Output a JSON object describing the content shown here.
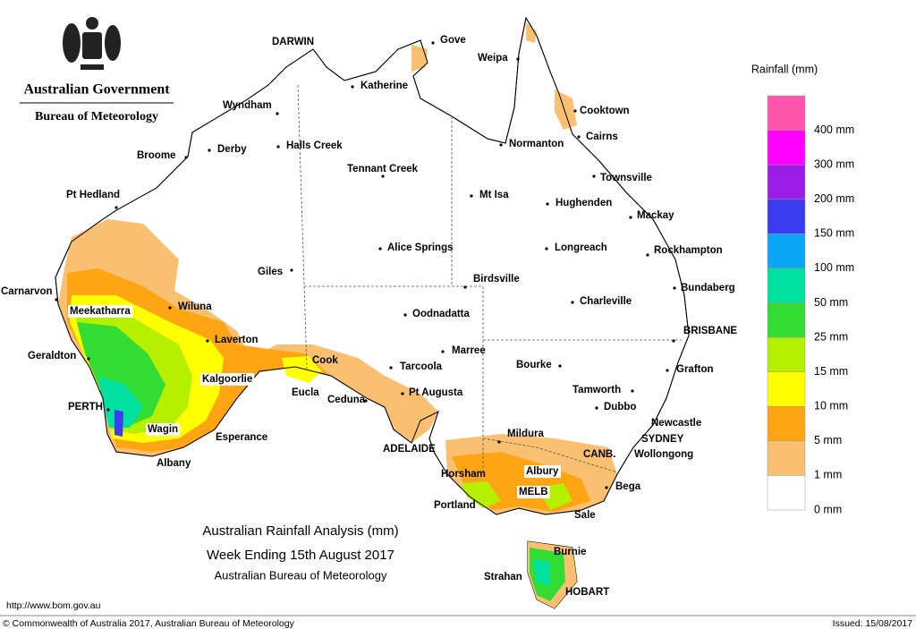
{
  "header": {
    "title": "Australian Government",
    "subtitle": "Bureau of Meteorology"
  },
  "places": [
    "DARWIN",
    "Gove",
    "Weipa",
    "Katherine",
    "Wyndham",
    "Derby",
    "Broome",
    "Halls Creek",
    "Tennant Creek",
    "Pt Hedland",
    "Normanton",
    "Cooktown",
    "Cairns",
    "Townsville",
    "Mt Isa",
    "Hughenden",
    "Mackay",
    "Rockhampton",
    "Alice Springs",
    "Longreach",
    "Giles",
    "Birdsville",
    "Bundaberg",
    "Charleville",
    "Carnarvon",
    "Wiluna",
    "Meekatharra",
    "Oodnadatta",
    "BRISBANE",
    "Laverton",
    "Geraldton",
    "Marree",
    "Cook",
    "Tarcoola",
    "Bourke",
    "Grafton",
    "Kalgoorlie",
    "Pt Augusta",
    "Eucla",
    "Tamworth",
    "Ceduna",
    "PERTH",
    "Dubbo",
    "Newcastle",
    "Wagin",
    "Mildura",
    "SYDNEY",
    "Esperance",
    "ADELAIDE",
    "CANB.",
    "Wollongong",
    "Albury",
    "Albany",
    "Horsham",
    "Bega",
    "MELB",
    "Portland",
    "Sale",
    "Burnie",
    "Strahan",
    "HOBART"
  ],
  "legend": {
    "title": "Rainfall (mm)",
    "items": [
      {
        "label": "400 mm",
        "color": "#ff55aa"
      },
      {
        "label": "300 mm",
        "color": "#ff00ff"
      },
      {
        "label": "200 mm",
        "color": "#9a1ee6"
      },
      {
        "label": "150 mm",
        "color": "#3c3cf0"
      },
      {
        "label": "100 mm",
        "color": "#0aa5f5"
      },
      {
        "label": "50 mm",
        "color": "#00e0a0"
      },
      {
        "label": "25 mm",
        "color": "#32dc32"
      },
      {
        "label": "15 mm",
        "color": "#b4f000"
      },
      {
        "label": "10 mm",
        "color": "#ffff00"
      },
      {
        "label": "5 mm",
        "color": "#ffa514"
      },
      {
        "label": "1 mm",
        "color": "#f8c070"
      },
      {
        "label": "0 mm",
        "color": "#ffffff"
      }
    ]
  },
  "caption": {
    "title": "Australian Rainfall Analysis (mm)",
    "subtitle": "Week Ending 15th August 2017",
    "source": "Australian Bureau of Meteorology"
  },
  "footer": {
    "url": "http://www.bom.gov.au",
    "copyright": "© Commonwealth of Australia 2017, Australian Bureau of Meteorology",
    "issued": "Issued: 15/08/2017"
  }
}
